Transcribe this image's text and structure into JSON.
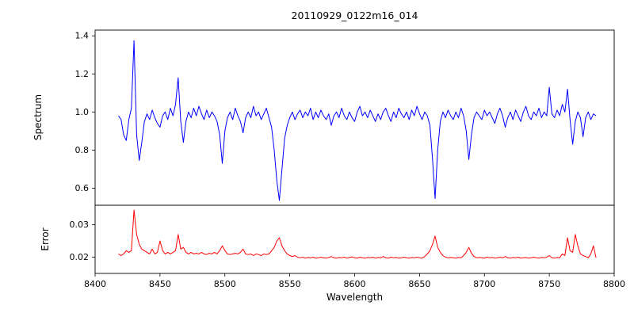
{
  "figure": {
    "background": "#ffffff",
    "spine_color": "#000000"
  },
  "chart_data": [
    {
      "type": "line",
      "title": "20110929_0122m16_014",
      "ylabel": "Spectrum",
      "xlabel": "",
      "color": "#0000ff",
      "xlim": [
        8400,
        8800
      ],
      "ylim": [
        0.51,
        1.43
      ],
      "yticks": [
        "0.6",
        "0.8",
        "1.0",
        "1.2",
        "1.4"
      ],
      "xticks": [],
      "grid": false,
      "legend": "none",
      "x_start": 8418,
      "x_step": 2,
      "values": [
        0.98,
        0.96,
        0.88,
        0.85,
        0.96,
        1.02,
        1.375,
        0.88,
        0.745,
        0.84,
        0.95,
        0.99,
        0.96,
        1.01,
        0.97,
        0.94,
        0.92,
        0.98,
        1.0,
        0.96,
        1.02,
        0.98,
        1.04,
        1.18,
        0.95,
        0.84,
        0.95,
        1.0,
        0.97,
        1.02,
        0.98,
        1.03,
        0.99,
        0.96,
        1.01,
        0.97,
        1.0,
        0.98,
        0.95,
        0.88,
        0.73,
        0.9,
        0.97,
        1.0,
        0.96,
        1.02,
        0.98,
        0.95,
        0.89,
        0.97,
        1.0,
        0.97,
        1.03,
        0.98,
        1.0,
        0.96,
        0.99,
        1.02,
        0.97,
        0.92,
        0.8,
        0.64,
        0.535,
        0.7,
        0.86,
        0.93,
        0.97,
        1.0,
        0.96,
        0.99,
        1.01,
        0.97,
        1.0,
        0.98,
        1.02,
        0.96,
        1.0,
        0.97,
        1.01,
        0.98,
        0.96,
        0.99,
        0.93,
        0.98,
        1.0,
        0.97,
        1.02,
        0.98,
        0.96,
        1.0,
        0.97,
        0.95,
        1.0,
        1.03,
        0.98,
        1.0,
        0.97,
        1.01,
        0.98,
        0.95,
        0.99,
        0.96,
        1.0,
        1.02,
        0.98,
        0.95,
        1.0,
        0.97,
        1.02,
        0.99,
        0.97,
        1.0,
        0.96,
        1.01,
        0.98,
        1.03,
        0.99,
        0.96,
        1.0,
        0.98,
        0.93,
        0.75,
        0.545,
        0.8,
        0.95,
        1.0,
        0.97,
        1.01,
        0.98,
        0.96,
        1.0,
        0.97,
        1.02,
        0.98,
        0.9,
        0.75,
        0.88,
        0.97,
        1.0,
        0.98,
        0.96,
        1.01,
        0.98,
        1.0,
        0.97,
        0.94,
        0.99,
        1.02,
        0.98,
        0.92,
        0.97,
        1.0,
        0.96,
        1.01,
        0.98,
        0.95,
        1.0,
        1.03,
        0.98,
        0.96,
        1.0,
        0.98,
        1.02,
        0.97,
        1.0,
        0.98,
        1.13,
        0.99,
        0.97,
        1.01,
        0.98,
        1.04,
        1.0,
        1.12,
        0.96,
        0.83,
        0.95,
        1.0,
        0.97,
        0.87,
        0.97,
        1.0,
        0.96,
        0.99,
        0.98
      ]
    },
    {
      "type": "line",
      "title": "",
      "ylabel": "Error",
      "xlabel": "Wavelength",
      "color": "#ff0000",
      "xlim": [
        8400,
        8800
      ],
      "ylim": [
        0.015,
        0.036
      ],
      "yticks": [
        "0.02",
        "0.03"
      ],
      "xticks": [
        "8400",
        "8450",
        "8500",
        "8550",
        "8600",
        "8650",
        "8700",
        "8750",
        "8800"
      ],
      "grid": false,
      "legend": "none",
      "x_start": 8418,
      "x_step": 2,
      "values": [
        0.021,
        0.0205,
        0.021,
        0.022,
        0.0215,
        0.022,
        0.0345,
        0.027,
        0.024,
        0.0225,
        0.022,
        0.0215,
        0.021,
        0.0225,
        0.021,
        0.0215,
        0.025,
        0.022,
        0.021,
        0.0215,
        0.021,
        0.0215,
        0.022,
        0.027,
        0.0225,
        0.023,
        0.0215,
        0.021,
        0.0215,
        0.021,
        0.0212,
        0.021,
        0.0215,
        0.021,
        0.0208,
        0.0212,
        0.021,
        0.0215,
        0.021,
        0.022,
        0.0235,
        0.022,
        0.021,
        0.0208,
        0.021,
        0.0212,
        0.021,
        0.0215,
        0.0225,
        0.021,
        0.0208,
        0.021,
        0.0205,
        0.021,
        0.0208,
        0.0205,
        0.021,
        0.0208,
        0.021,
        0.022,
        0.023,
        0.025,
        0.026,
        0.0235,
        0.022,
        0.021,
        0.0205,
        0.0202,
        0.0205,
        0.02,
        0.0198,
        0.02,
        0.0197,
        0.0199,
        0.0198,
        0.02,
        0.0197,
        0.0198,
        0.02,
        0.0198,
        0.0197,
        0.0199,
        0.0202,
        0.0198,
        0.0197,
        0.0199,
        0.0198,
        0.02,
        0.0197,
        0.0199,
        0.0201,
        0.0198,
        0.0197,
        0.02,
        0.0198,
        0.0197,
        0.0199,
        0.0198,
        0.02,
        0.0197,
        0.0199,
        0.0198,
        0.0202,
        0.0198,
        0.0197,
        0.02,
        0.0198,
        0.0199,
        0.0197,
        0.0198,
        0.02,
        0.0198,
        0.0197,
        0.0199,
        0.0198,
        0.02,
        0.0198,
        0.0197,
        0.0202,
        0.021,
        0.022,
        0.024,
        0.0265,
        0.023,
        0.0215,
        0.0205,
        0.02,
        0.0198,
        0.0199,
        0.0198,
        0.0197,
        0.0199,
        0.0198,
        0.0205,
        0.0215,
        0.023,
        0.0212,
        0.0202,
        0.0198,
        0.0199,
        0.0198,
        0.0197,
        0.02,
        0.0198,
        0.0199,
        0.0197,
        0.0198,
        0.02,
        0.0198,
        0.0202,
        0.0198,
        0.0197,
        0.0199,
        0.0198,
        0.02,
        0.0197,
        0.0198,
        0.0199,
        0.0197,
        0.0198,
        0.02,
        0.0198,
        0.0197,
        0.0199,
        0.0198,
        0.02,
        0.0205,
        0.0198,
        0.0197,
        0.0199,
        0.0198,
        0.021,
        0.0205,
        0.026,
        0.022,
        0.0215,
        0.027,
        0.0235,
        0.021,
        0.0205,
        0.0202,
        0.0198,
        0.021,
        0.0235,
        0.0198
      ]
    }
  ]
}
